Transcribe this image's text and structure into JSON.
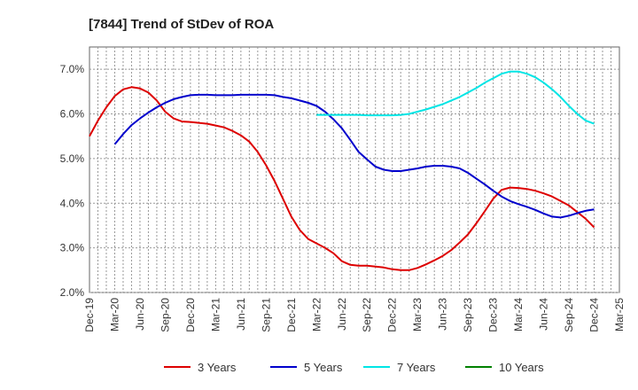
{
  "chart_data": {
    "type": "line",
    "title": "[7844]  Trend of StDev of ROA",
    "xlabel": "",
    "ylabel": "",
    "x_ticks": [
      "Dec-19",
      "Mar-20",
      "Jun-20",
      "Sep-20",
      "Dec-20",
      "Mar-21",
      "Jun-21",
      "Sep-21",
      "Dec-21",
      "Mar-22",
      "Jun-22",
      "Sep-22",
      "Dec-22",
      "Mar-23",
      "Jun-23",
      "Sep-23",
      "Dec-23",
      "Mar-24",
      "Jun-24",
      "Sep-24",
      "Dec-24",
      "Mar-25"
    ],
    "y_ticks": [
      "2.0%",
      "3.0%",
      "4.0%",
      "5.0%",
      "6.0%",
      "7.0%"
    ],
    "ylim": [
      2.0,
      7.5
    ],
    "grid": true,
    "legend_position": "bottom",
    "series": [
      {
        "name": "3 Years",
        "color": "#dd0000",
        "x": [
          "Dec-19",
          "Jan-20",
          "Feb-20",
          "Mar-20",
          "Apr-20",
          "May-20",
          "Jun-20",
          "Jul-20",
          "Aug-20",
          "Sep-20",
          "Oct-20",
          "Nov-20",
          "Dec-20",
          "Jan-21",
          "Feb-21",
          "Mar-21",
          "Apr-21",
          "May-21",
          "Jun-21",
          "Jul-21",
          "Aug-21",
          "Sep-21",
          "Oct-21",
          "Nov-21",
          "Dec-21",
          "Jan-22",
          "Feb-22",
          "Mar-22",
          "Apr-22",
          "May-22",
          "Jun-22",
          "Jul-22",
          "Aug-22",
          "Sep-22",
          "Oct-22",
          "Nov-22",
          "Dec-22",
          "Jan-23",
          "Feb-23",
          "Mar-23",
          "Apr-23",
          "May-23",
          "Jun-23",
          "Jul-23",
          "Aug-23",
          "Sep-23",
          "Oct-23",
          "Nov-23",
          "Dec-23",
          "Jan-24",
          "Feb-24",
          "Mar-24",
          "Apr-24",
          "May-24",
          "Jun-24",
          "Jul-24",
          "Aug-24",
          "Sep-24",
          "Oct-24",
          "Nov-24",
          "Dec-24"
        ],
        "values": [
          5.5,
          5.85,
          6.15,
          6.4,
          6.55,
          6.6,
          6.57,
          6.48,
          6.3,
          6.05,
          5.9,
          5.83,
          5.82,
          5.8,
          5.78,
          5.74,
          5.7,
          5.62,
          5.52,
          5.38,
          5.15,
          4.85,
          4.5,
          4.1,
          3.7,
          3.4,
          3.2,
          3.1,
          3.0,
          2.88,
          2.7,
          2.62,
          2.6,
          2.6,
          2.58,
          2.56,
          2.52,
          2.5,
          2.5,
          2.55,
          2.63,
          2.72,
          2.82,
          2.95,
          3.12,
          3.3,
          3.55,
          3.82,
          4.1,
          4.3,
          4.35,
          4.34,
          4.32,
          4.28,
          4.22,
          4.15,
          4.05,
          3.95,
          3.8,
          3.65,
          3.46
        ]
      },
      {
        "name": "5 Years",
        "color": "#0000cc",
        "x": [
          "Mar-20",
          "Apr-20",
          "May-20",
          "Jun-20",
          "Jul-20",
          "Aug-20",
          "Sep-20",
          "Oct-20",
          "Nov-20",
          "Dec-20",
          "Jan-21",
          "Feb-21",
          "Mar-21",
          "Apr-21",
          "May-21",
          "Jun-21",
          "Jul-21",
          "Aug-21",
          "Sep-21",
          "Oct-21",
          "Nov-21",
          "Dec-21",
          "Jan-22",
          "Feb-22",
          "Mar-22",
          "Apr-22",
          "May-22",
          "Jun-22",
          "Jul-22",
          "Aug-22",
          "Sep-22",
          "Oct-22",
          "Nov-22",
          "Dec-22",
          "Jan-23",
          "Feb-23",
          "Mar-23",
          "Apr-23",
          "May-23",
          "Jun-23",
          "Jul-23",
          "Aug-23",
          "Sep-23",
          "Oct-23",
          "Nov-23",
          "Dec-23",
          "Jan-24",
          "Feb-24",
          "Mar-24",
          "Apr-24",
          "May-24",
          "Jun-24",
          "Jul-24",
          "Aug-24",
          "Sep-24",
          "Oct-24",
          "Nov-24",
          "Dec-24"
        ],
        "values": [
          5.32,
          5.55,
          5.75,
          5.9,
          6.03,
          6.15,
          6.25,
          6.33,
          6.38,
          6.42,
          6.43,
          6.43,
          6.42,
          6.42,
          6.42,
          6.43,
          6.43,
          6.43,
          6.43,
          6.42,
          6.38,
          6.35,
          6.3,
          6.25,
          6.18,
          6.05,
          5.88,
          5.68,
          5.42,
          5.15,
          4.98,
          4.82,
          4.75,
          4.72,
          4.72,
          4.75,
          4.78,
          4.82,
          4.84,
          4.84,
          4.82,
          4.78,
          4.68,
          4.55,
          4.42,
          4.28,
          4.15,
          4.05,
          3.98,
          3.92,
          3.85,
          3.77,
          3.7,
          3.68,
          3.72,
          3.78,
          3.83,
          3.86
        ]
      },
      {
        "name": "7 Years",
        "color": "#00e5e5",
        "x": [
          "Mar-22",
          "Apr-22",
          "May-22",
          "Jun-22",
          "Jul-22",
          "Aug-22",
          "Sep-22",
          "Oct-22",
          "Nov-22",
          "Dec-22",
          "Jan-23",
          "Feb-23",
          "Mar-23",
          "Apr-23",
          "May-23",
          "Jun-23",
          "Jul-23",
          "Aug-23",
          "Sep-23",
          "Oct-23",
          "Nov-23",
          "Dec-23",
          "Jan-24",
          "Feb-24",
          "Mar-24",
          "Apr-24",
          "May-24",
          "Jun-24",
          "Jul-24",
          "Aug-24",
          "Sep-24",
          "Oct-24",
          "Nov-24",
          "Dec-24"
        ],
        "values": [
          5.98,
          5.98,
          5.98,
          5.98,
          5.98,
          5.98,
          5.97,
          5.97,
          5.97,
          5.97,
          5.98,
          6.0,
          6.05,
          6.1,
          6.16,
          6.22,
          6.3,
          6.38,
          6.48,
          6.58,
          6.7,
          6.8,
          6.9,
          6.95,
          6.95,
          6.9,
          6.82,
          6.7,
          6.55,
          6.38,
          6.18,
          6.0,
          5.85,
          5.78
        ]
      },
      {
        "name": "10 Years",
        "color": "#008000",
        "x": [],
        "values": []
      }
    ]
  }
}
